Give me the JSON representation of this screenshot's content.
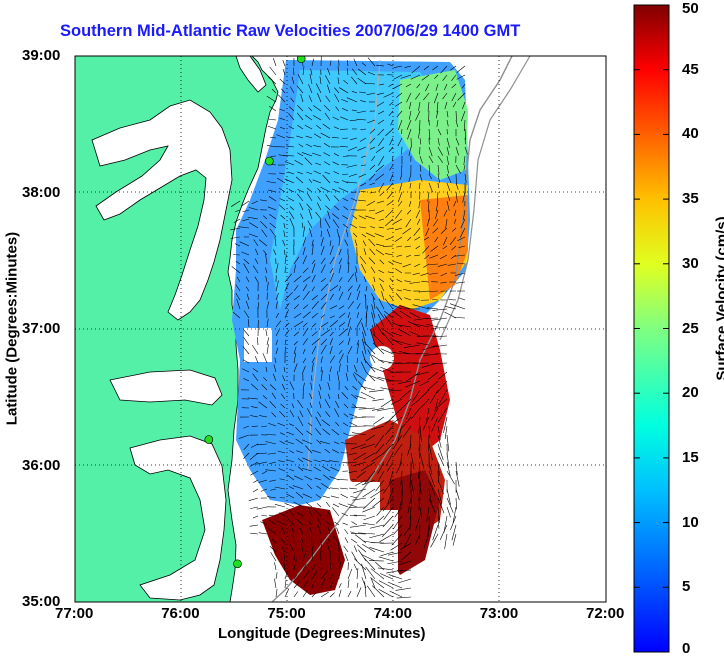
{
  "title": "Southern Mid-Atlantic Raw Velocities 2007/06/29 1400 GMT",
  "x_axis": {
    "label": "Longitude (Degrees:Minutes)",
    "ticks": [
      "77:00",
      "76:00",
      "75:00",
      "74:00",
      "73:00",
      "72:00"
    ]
  },
  "y_axis": {
    "label": "Latitude (Degrees:Minutes)",
    "ticks": [
      "39:00",
      "38:00",
      "37:00",
      "36:00",
      "35:00"
    ]
  },
  "colorbar": {
    "label": "Surface Velocity (cm/s)",
    "ticks": [
      "50",
      "45",
      "40",
      "35",
      "30",
      "25",
      "20",
      "15",
      "10",
      "5",
      "0"
    ],
    "range": [
      0,
      50
    ]
  },
  "colors": {
    "land": "#55f0a8",
    "title": "#1a1aff",
    "station": "#22dd22"
  },
  "chart_data": {
    "type": "heatmap",
    "title": "Southern Mid-Atlantic Raw Velocities 2007/06/29 1400 GMT",
    "xlabel": "Longitude (Degrees:Minutes)",
    "ylabel": "Latitude (Degrees:Minutes)",
    "xlim": [
      -77,
      -72
    ],
    "ylim": [
      35,
      39
    ],
    "color_range_cm_s": [
      0,
      50
    ],
    "colormap": "jet",
    "grid": true,
    "stations": [
      {
        "lon": -74.87,
        "lat": 38.98
      },
      {
        "lon": -75.17,
        "lat": 38.23
      },
      {
        "lon": -75.74,
        "lat": 36.19
      },
      {
        "lon": -75.47,
        "lat": 35.28
      }
    ]
  }
}
